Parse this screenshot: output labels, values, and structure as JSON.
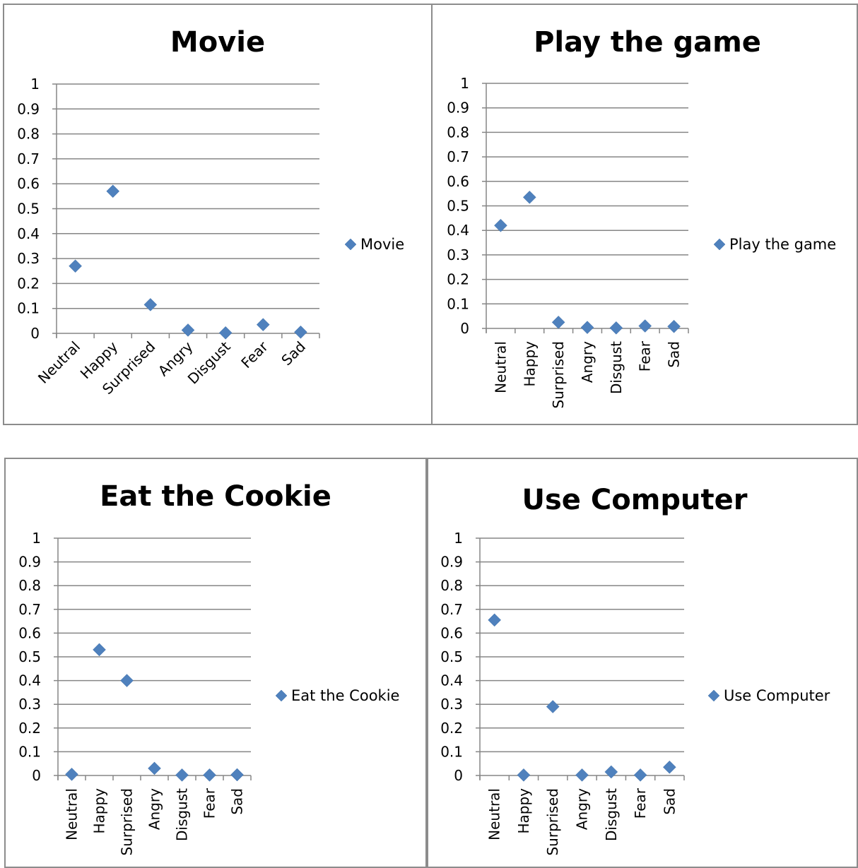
{
  "chart_data": [
    {
      "type": "scatter",
      "title": "Movie",
      "categories": [
        "Neutral",
        "Happy",
        "Surprised",
        "Angry",
        "Disgust",
        "Fear",
        "Sad"
      ],
      "series": [
        {
          "name": "Movie",
          "values": [
            0.27,
            0.57,
            0.115,
            0.013,
            0.002,
            0.035,
            0.005
          ]
        }
      ],
      "ylim": [
        0,
        1
      ],
      "yticks": [
        "0",
        "0.1",
        "0.2",
        "0.3",
        "0.4",
        "0.5",
        "0.6",
        "0.7",
        "0.8",
        "0.9",
        "1"
      ],
      "grid": true,
      "legend": "right",
      "xlabel_rotation": "diagonal",
      "color": "#4f81bd"
    },
    {
      "type": "scatter",
      "title": "Play the game",
      "categories": [
        "Neutral",
        "Happy",
        "Surprised",
        "Angry",
        "Disgust",
        "Fear",
        "Sad"
      ],
      "series": [
        {
          "name": "Play the game",
          "values": [
            0.42,
            0.535,
            0.025,
            0.004,
            0.002,
            0.01,
            0.008
          ]
        }
      ],
      "ylim": [
        0,
        1
      ],
      "yticks": [
        "0",
        "0.1",
        "0.2",
        "0.3",
        "0.4",
        "0.5",
        "0.6",
        "0.7",
        "0.8",
        "0.9",
        "1"
      ],
      "grid": true,
      "legend": "right",
      "xlabel_rotation": "vertical",
      "color": "#4f81bd"
    },
    {
      "type": "scatter",
      "title": "Eat the Cookie",
      "categories": [
        "Neutral",
        "Happy",
        "Surprised",
        "Angry",
        "Disgust",
        "Fear",
        "Sad"
      ],
      "series": [
        {
          "name": "Eat the Cookie",
          "values": [
            0.005,
            0.53,
            0.4,
            0.03,
            0.002,
            0.002,
            0.003
          ]
        }
      ],
      "ylim": [
        0,
        1
      ],
      "yticks": [
        "0",
        "0.1",
        "0.2",
        "0.3",
        "0.4",
        "0.5",
        "0.6",
        "0.7",
        "0.8",
        "0.9",
        "1"
      ],
      "grid": true,
      "legend": "right",
      "xlabel_rotation": "vertical",
      "color": "#4f81bd"
    },
    {
      "type": "scatter",
      "title": "Use Computer",
      "categories": [
        "Neutral",
        "Happy",
        "Surprised",
        "Angry",
        "Disgust",
        "Fear",
        "Sad"
      ],
      "series": [
        {
          "name": "Use Computer",
          "values": [
            0.655,
            0.002,
            0.29,
            0.002,
            0.015,
            0.002,
            0.035
          ]
        }
      ],
      "ylim": [
        0,
        1
      ],
      "yticks": [
        "0",
        "0.1",
        "0.2",
        "0.3",
        "0.4",
        "0.5",
        "0.6",
        "0.7",
        "0.8",
        "0.9",
        "1"
      ],
      "grid": true,
      "legend": "right",
      "xlabel_rotation": "vertical",
      "color": "#4f81bd"
    }
  ]
}
